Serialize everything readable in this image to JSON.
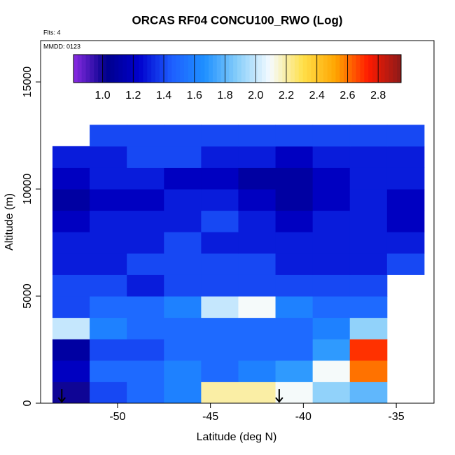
{
  "chart_data": {
    "type": "heatmap",
    "title": "ORCAS RF04 CONCU100_RWO (Log)",
    "subtitle": "Flts: 4",
    "annotation": "MMDD: 0123",
    "x_label": "Latitude (deg N)",
    "y_label": "Altitude (m)",
    "xlim": [
      -54.14,
      -32.97
    ],
    "ylim": [
      0,
      16930
    ],
    "xticks": [
      -50,
      -45,
      -40,
      -35
    ],
    "yticks": [
      0,
      5000,
      10000,
      15000
    ],
    "x_edges": [
      -53.5,
      -51.5,
      -49.5,
      -47.5,
      -45.5,
      -43.5,
      -41.5,
      -39.5,
      -37.5,
      -35.5,
      -33.5
    ],
    "y_edges": [
      0,
      1000,
      2000,
      3000,
      4000,
      5000,
      6000,
      7000,
      8000,
      9000,
      10000,
      11000,
      12000,
      13000
    ],
    "z": [
      [
        1.0,
        1.4,
        1.5,
        1.6,
        2.2,
        2.2,
        2.1,
        1.9,
        1.8,
        null
      ],
      [
        1.2,
        1.5,
        1.5,
        1.6,
        1.5,
        1.6,
        1.7,
        2.1,
        2.6,
        null
      ],
      [
        1.1,
        1.4,
        1.4,
        1.5,
        1.5,
        1.5,
        1.5,
        1.7,
        2.7,
        null
      ],
      [
        2.0,
        1.6,
        1.5,
        1.5,
        1.5,
        1.5,
        1.5,
        1.6,
        1.9,
        null
      ],
      [
        1.4,
        1.5,
        1.5,
        1.6,
        2.0,
        2.1,
        1.6,
        1.5,
        1.5,
        null
      ],
      [
        1.4,
        1.4,
        1.3,
        1.4,
        1.4,
        1.4,
        1.4,
        1.4,
        1.4,
        null
      ],
      [
        1.3,
        1.3,
        1.4,
        1.4,
        1.4,
        1.4,
        1.3,
        1.3,
        1.3,
        1.4
      ],
      [
        1.3,
        1.3,
        1.3,
        1.4,
        1.3,
        1.3,
        1.3,
        1.3,
        1.3,
        1.3
      ],
      [
        1.2,
        1.3,
        1.3,
        1.3,
        1.4,
        1.3,
        1.2,
        1.3,
        1.3,
        1.2
      ],
      [
        1.1,
        1.2,
        1.2,
        1.3,
        1.3,
        1.2,
        1.1,
        1.2,
        1.3,
        1.2
      ],
      [
        1.2,
        1.3,
        1.3,
        1.2,
        1.2,
        1.1,
        1.1,
        1.2,
        1.3,
        1.3
      ],
      [
        1.3,
        1.3,
        1.4,
        1.4,
        1.3,
        1.3,
        1.2,
        1.3,
        1.3,
        1.3
      ],
      [
        null,
        1.4,
        1.4,
        1.4,
        1.4,
        1.4,
        1.4,
        1.4,
        1.4,
        1.4
      ]
    ],
    "arrows_x": [
      -53.0,
      -41.3
    ],
    "colorbar": {
      "lim": [
        0.81,
        2.95
      ],
      "ticks": [
        {
          "value": 1.0,
          "label": "1.0"
        },
        {
          "value": 1.2,
          "label": "1.2"
        },
        {
          "value": 1.4,
          "label": "1.4"
        },
        {
          "value": 1.6,
          "label": "1.6"
        },
        {
          "value": 1.8,
          "label": "1.8"
        },
        {
          "value": 2.0,
          "label": "2.0"
        },
        {
          "value": 2.2,
          "label": "2.2"
        },
        {
          "value": 2.4,
          "label": "2.4"
        },
        {
          "value": 2.6,
          "label": "2.6"
        },
        {
          "value": 2.8,
          "label": "2.8"
        }
      ],
      "colors": [
        "#8a2be2",
        "#00008b",
        "#0000cd",
        "#1e5fff",
        "#1e90ff",
        "#87cefa",
        "#f5fbff",
        "#ffe04a",
        "#ffa500",
        "#ff1a00",
        "#8b1a1a"
      ]
    }
  }
}
